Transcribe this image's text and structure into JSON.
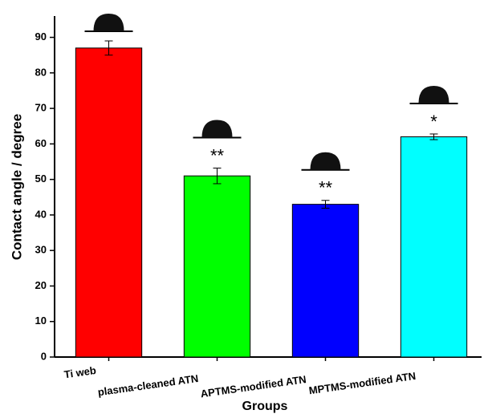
{
  "chart_data": {
    "type": "bar",
    "y_label": "Contact angle / degree",
    "x_label": "Groups",
    "categories": [
      "Ti web",
      "plasma-cleaned ATN",
      "APTMS-modified ATN",
      "MPTMS-modified ATN"
    ],
    "values": [
      87,
      51,
      43,
      62
    ],
    "errors": [
      2,
      2.2,
      1.1,
      0.8
    ],
    "value_annotations": [
      null,
      "**",
      "**",
      "*"
    ],
    "colors": [
      "#ff0000",
      "#00ff00",
      "#0000ff",
      "#00ffff"
    ],
    "ylim": [
      0,
      96
    ],
    "yticks": [
      0,
      10,
      20,
      30,
      40,
      50,
      60,
      70,
      80,
      90
    ]
  }
}
